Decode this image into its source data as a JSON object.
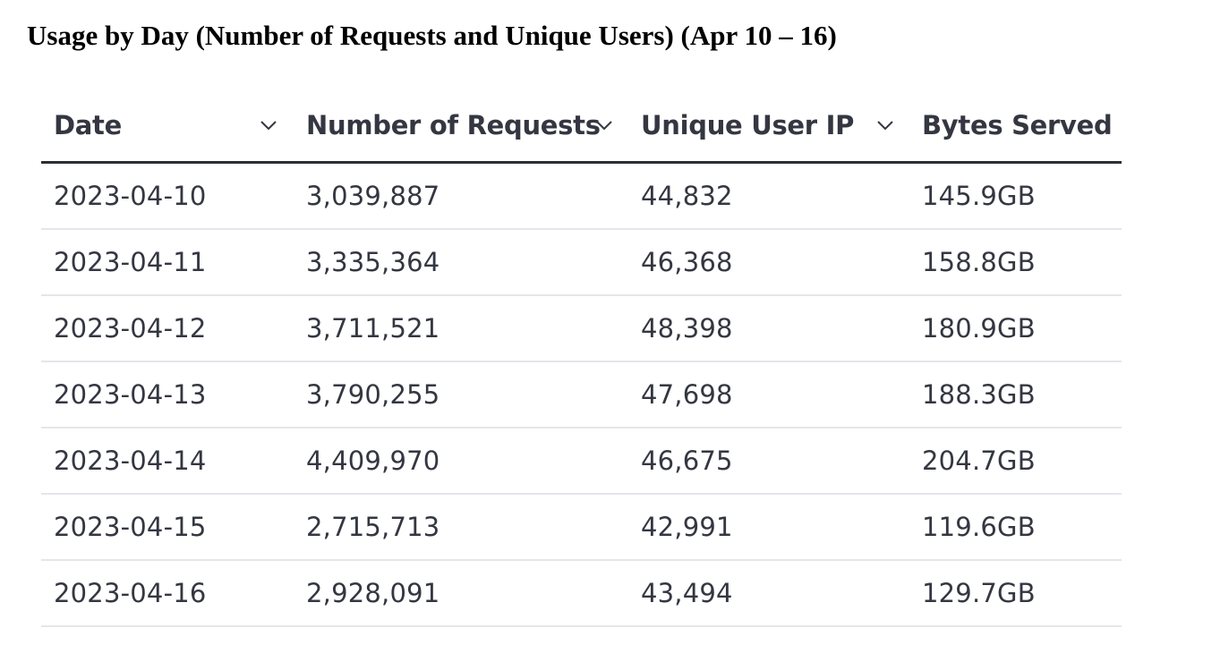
{
  "page": {
    "title": "Usage by Day (Number of Requests and Unique Users) (Apr 10 – 16)"
  },
  "table": {
    "columns": [
      {
        "label": "Date",
        "sort_icon": "chevron-down-icon"
      },
      {
        "label": "Number of Requests",
        "sort_icon": "chevron-down-icon"
      },
      {
        "label": "Unique User IP",
        "sort_icon": "chevron-down-icon"
      },
      {
        "label": "Bytes Served"
      }
    ],
    "rows": [
      {
        "date": "2023-04-10",
        "requests": "3,039,887",
        "unique_ips": "44,832",
        "bytes": "145.9GB"
      },
      {
        "date": "2023-04-11",
        "requests": "3,335,364",
        "unique_ips": "46,368",
        "bytes": "158.8GB"
      },
      {
        "date": "2023-04-12",
        "requests": "3,711,521",
        "unique_ips": "48,398",
        "bytes": "180.9GB"
      },
      {
        "date": "2023-04-13",
        "requests": "3,790,255",
        "unique_ips": "47,698",
        "bytes": "188.3GB"
      },
      {
        "date": "2023-04-14",
        "requests": "4,409,970",
        "unique_ips": "46,675",
        "bytes": "204.7GB"
      },
      {
        "date": "2023-04-15",
        "requests": "2,715,713",
        "unique_ips": "42,991",
        "bytes": "119.6GB"
      },
      {
        "date": "2023-04-16",
        "requests": "2,928,091",
        "unique_ips": "43,494",
        "bytes": "129.7GB"
      }
    ]
  },
  "colors": {
    "text": "#343741",
    "header_border": "#2b2f33",
    "row_border": "#e3e6ea"
  }
}
